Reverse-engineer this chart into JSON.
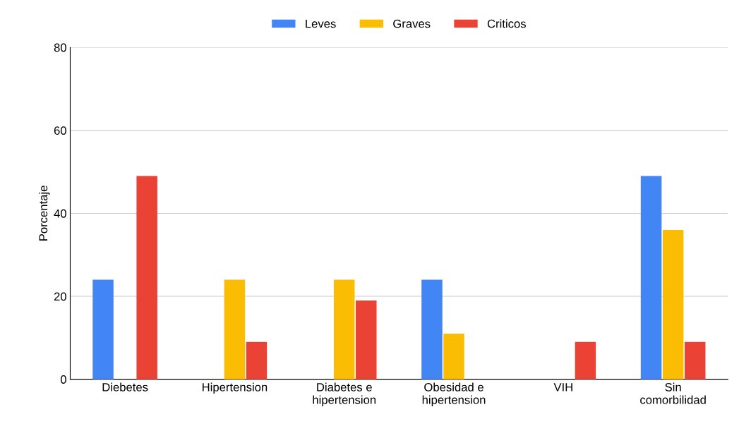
{
  "chart_data": {
    "type": "bar",
    "ylabel": "Porcentaje",
    "categories": [
      "Diebetes",
      "Hipertension",
      "Diabetes e hipertension",
      "Obesidad e hipertension",
      "VIH",
      "Sin comorbilidad"
    ],
    "series": [
      {
        "name": "Leves",
        "color": "#4285f4",
        "values": [
          24,
          0,
          0,
          24,
          0,
          49
        ]
      },
      {
        "name": "Graves",
        "color": "#fbbc04",
        "values": [
          0,
          24,
          24,
          11,
          0,
          36
        ]
      },
      {
        "name": "Criticos",
        "color": "#ea4335",
        "values": [
          49,
          9,
          19,
          0,
          9,
          9
        ]
      }
    ],
    "ylim": [
      0,
      80
    ],
    "yticks": [
      0,
      20,
      40,
      60,
      80
    ],
    "grid": "y",
    "legend": "top"
  }
}
